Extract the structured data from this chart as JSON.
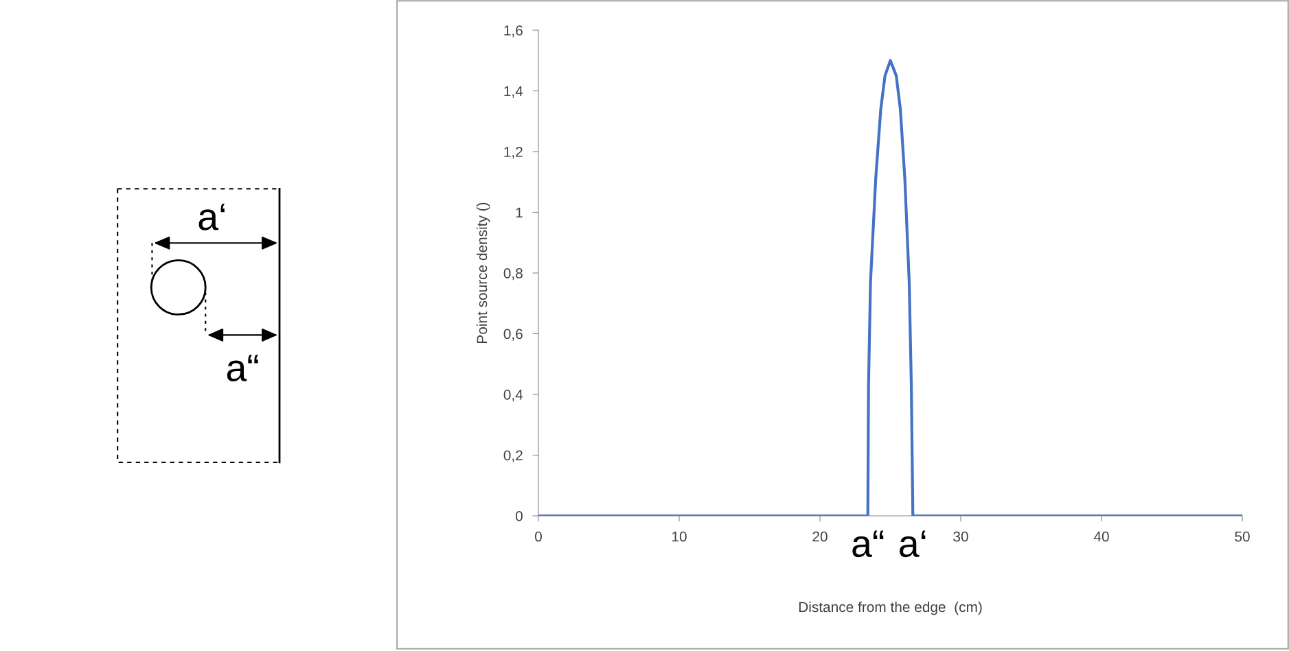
{
  "chart_data": {
    "type": "line",
    "xlabel": "Distance from the edge  (cm)",
    "ylabel": "Point source density ()",
    "x": [
      0,
      23.4,
      23.45,
      23.59,
      23.96,
      24.32,
      24.62,
      25,
      25.42,
      25.71,
      26.03,
      26.34,
      26.49,
      26.6,
      50
    ],
    "series": [
      {
        "color": "#4472c4",
        "values": [
          0,
          0,
          0.43,
          0.77,
          1.11,
          1.34,
          1.45,
          1.5,
          1.45,
          1.34,
          1.11,
          0.77,
          0.43,
          0,
          0
        ]
      }
    ],
    "xlim": [
      0,
      50
    ],
    "xticks": [
      0,
      10,
      20,
      30,
      40,
      50
    ],
    "ylim": [
      0,
      1.6
    ],
    "yticks": [
      0,
      {
        "value": 0.2,
        "label": "0,2"
      },
      {
        "value": 0.4,
        "label": "0,4"
      },
      {
        "value": 0.6,
        "label": "0,6"
      },
      {
        "value": 0.8,
        "label": "0,8"
      },
      1,
      {
        "value": 1.2,
        "label": "1,2"
      },
      {
        "value": 1.4,
        "label": "1,4"
      },
      {
        "value": 1.6,
        "label": "1,6"
      }
    ],
    "marker": "none",
    "line_style": "solid",
    "annotations": [
      {
        "text": "a“",
        "x": 23.4,
        "y": 0
      },
      {
        "text": "a‘",
        "x": 26.6,
        "y": 0
      },
      "a‘",
      "a“"
    ]
  }
}
